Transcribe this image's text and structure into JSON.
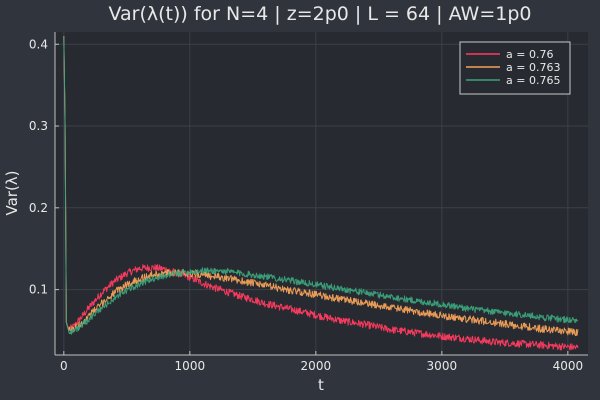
{
  "chart_data": {
    "type": "line",
    "title": "Var(λ(t)) for N=4 | z=2p0 |  L = 64 | AW=1p0",
    "xlabel": "t",
    "ylabel": "Var(λ)",
    "xlim": [
      -70,
      4160
    ],
    "ylim": [
      0.02,
      0.415
    ],
    "xticks": [
      0,
      1000,
      2000,
      3000,
      4000
    ],
    "yticks": [
      0.1,
      0.2,
      0.3,
      0.4
    ],
    "grid": true,
    "legend_position": "top-right",
    "colors": {
      "background": "#30343c",
      "plot_background": "#272a31",
      "grid": "#3c4049",
      "axis": "#c0c0c0",
      "text": "#e8e8e8"
    },
    "series": [
      {
        "name": "a = 0.76",
        "color": "#ff3b60",
        "noise": 0.0045,
        "x": [
          0,
          10,
          20,
          40,
          80,
          150,
          200,
          300,
          400,
          500,
          600,
          700,
          800,
          900,
          1000,
          1100,
          1200,
          1300,
          1400,
          1500,
          1600,
          1800,
          2000,
          2200,
          2400,
          2600,
          2800,
          3000,
          3200,
          3400,
          3600,
          3800,
          4000,
          4080
        ],
        "values": [
          0.41,
          0.3,
          0.06,
          0.051,
          0.055,
          0.068,
          0.078,
          0.096,
          0.11,
          0.12,
          0.126,
          0.127,
          0.125,
          0.12,
          0.115,
          0.108,
          0.102,
          0.097,
          0.092,
          0.088,
          0.083,
          0.076,
          0.069,
          0.062,
          0.057,
          0.051,
          0.047,
          0.043,
          0.04,
          0.036,
          0.034,
          0.032,
          0.03,
          0.029
        ]
      },
      {
        "name": "a = 0.763",
        "color": "#f4a259",
        "noise": 0.0045,
        "x": [
          0,
          10,
          20,
          40,
          80,
          150,
          200,
          300,
          400,
          500,
          600,
          700,
          800,
          900,
          1000,
          1100,
          1200,
          1400,
          1600,
          1800,
          2000,
          2200,
          2400,
          2600,
          2800,
          3000,
          3200,
          3400,
          3600,
          3800,
          4000,
          4080
        ],
        "values": [
          0.41,
          0.3,
          0.06,
          0.05,
          0.052,
          0.06,
          0.068,
          0.083,
          0.096,
          0.106,
          0.113,
          0.118,
          0.12,
          0.121,
          0.12,
          0.118,
          0.116,
          0.111,
          0.105,
          0.099,
          0.094,
          0.088,
          0.083,
          0.078,
          0.073,
          0.068,
          0.064,
          0.06,
          0.056,
          0.052,
          0.049,
          0.047
        ]
      },
      {
        "name": "a = 0.765",
        "color": "#3ba37b",
        "noise": 0.004,
        "x": [
          0,
          10,
          20,
          40,
          80,
          150,
          200,
          300,
          400,
          500,
          600,
          700,
          800,
          900,
          1000,
          1100,
          1200,
          1300,
          1400,
          1600,
          1800,
          2000,
          2200,
          2400,
          2600,
          2800,
          3000,
          3200,
          3400,
          3600,
          3800,
          4000,
          4080
        ],
        "values": [
          0.41,
          0.3,
          0.06,
          0.048,
          0.05,
          0.057,
          0.064,
          0.077,
          0.089,
          0.099,
          0.107,
          0.113,
          0.117,
          0.12,
          0.122,
          0.123,
          0.123,
          0.122,
          0.12,
          0.116,
          0.111,
          0.106,
          0.101,
          0.096,
          0.091,
          0.086,
          0.082,
          0.077,
          0.073,
          0.07,
          0.066,
          0.063,
          0.062
        ]
      }
    ]
  }
}
